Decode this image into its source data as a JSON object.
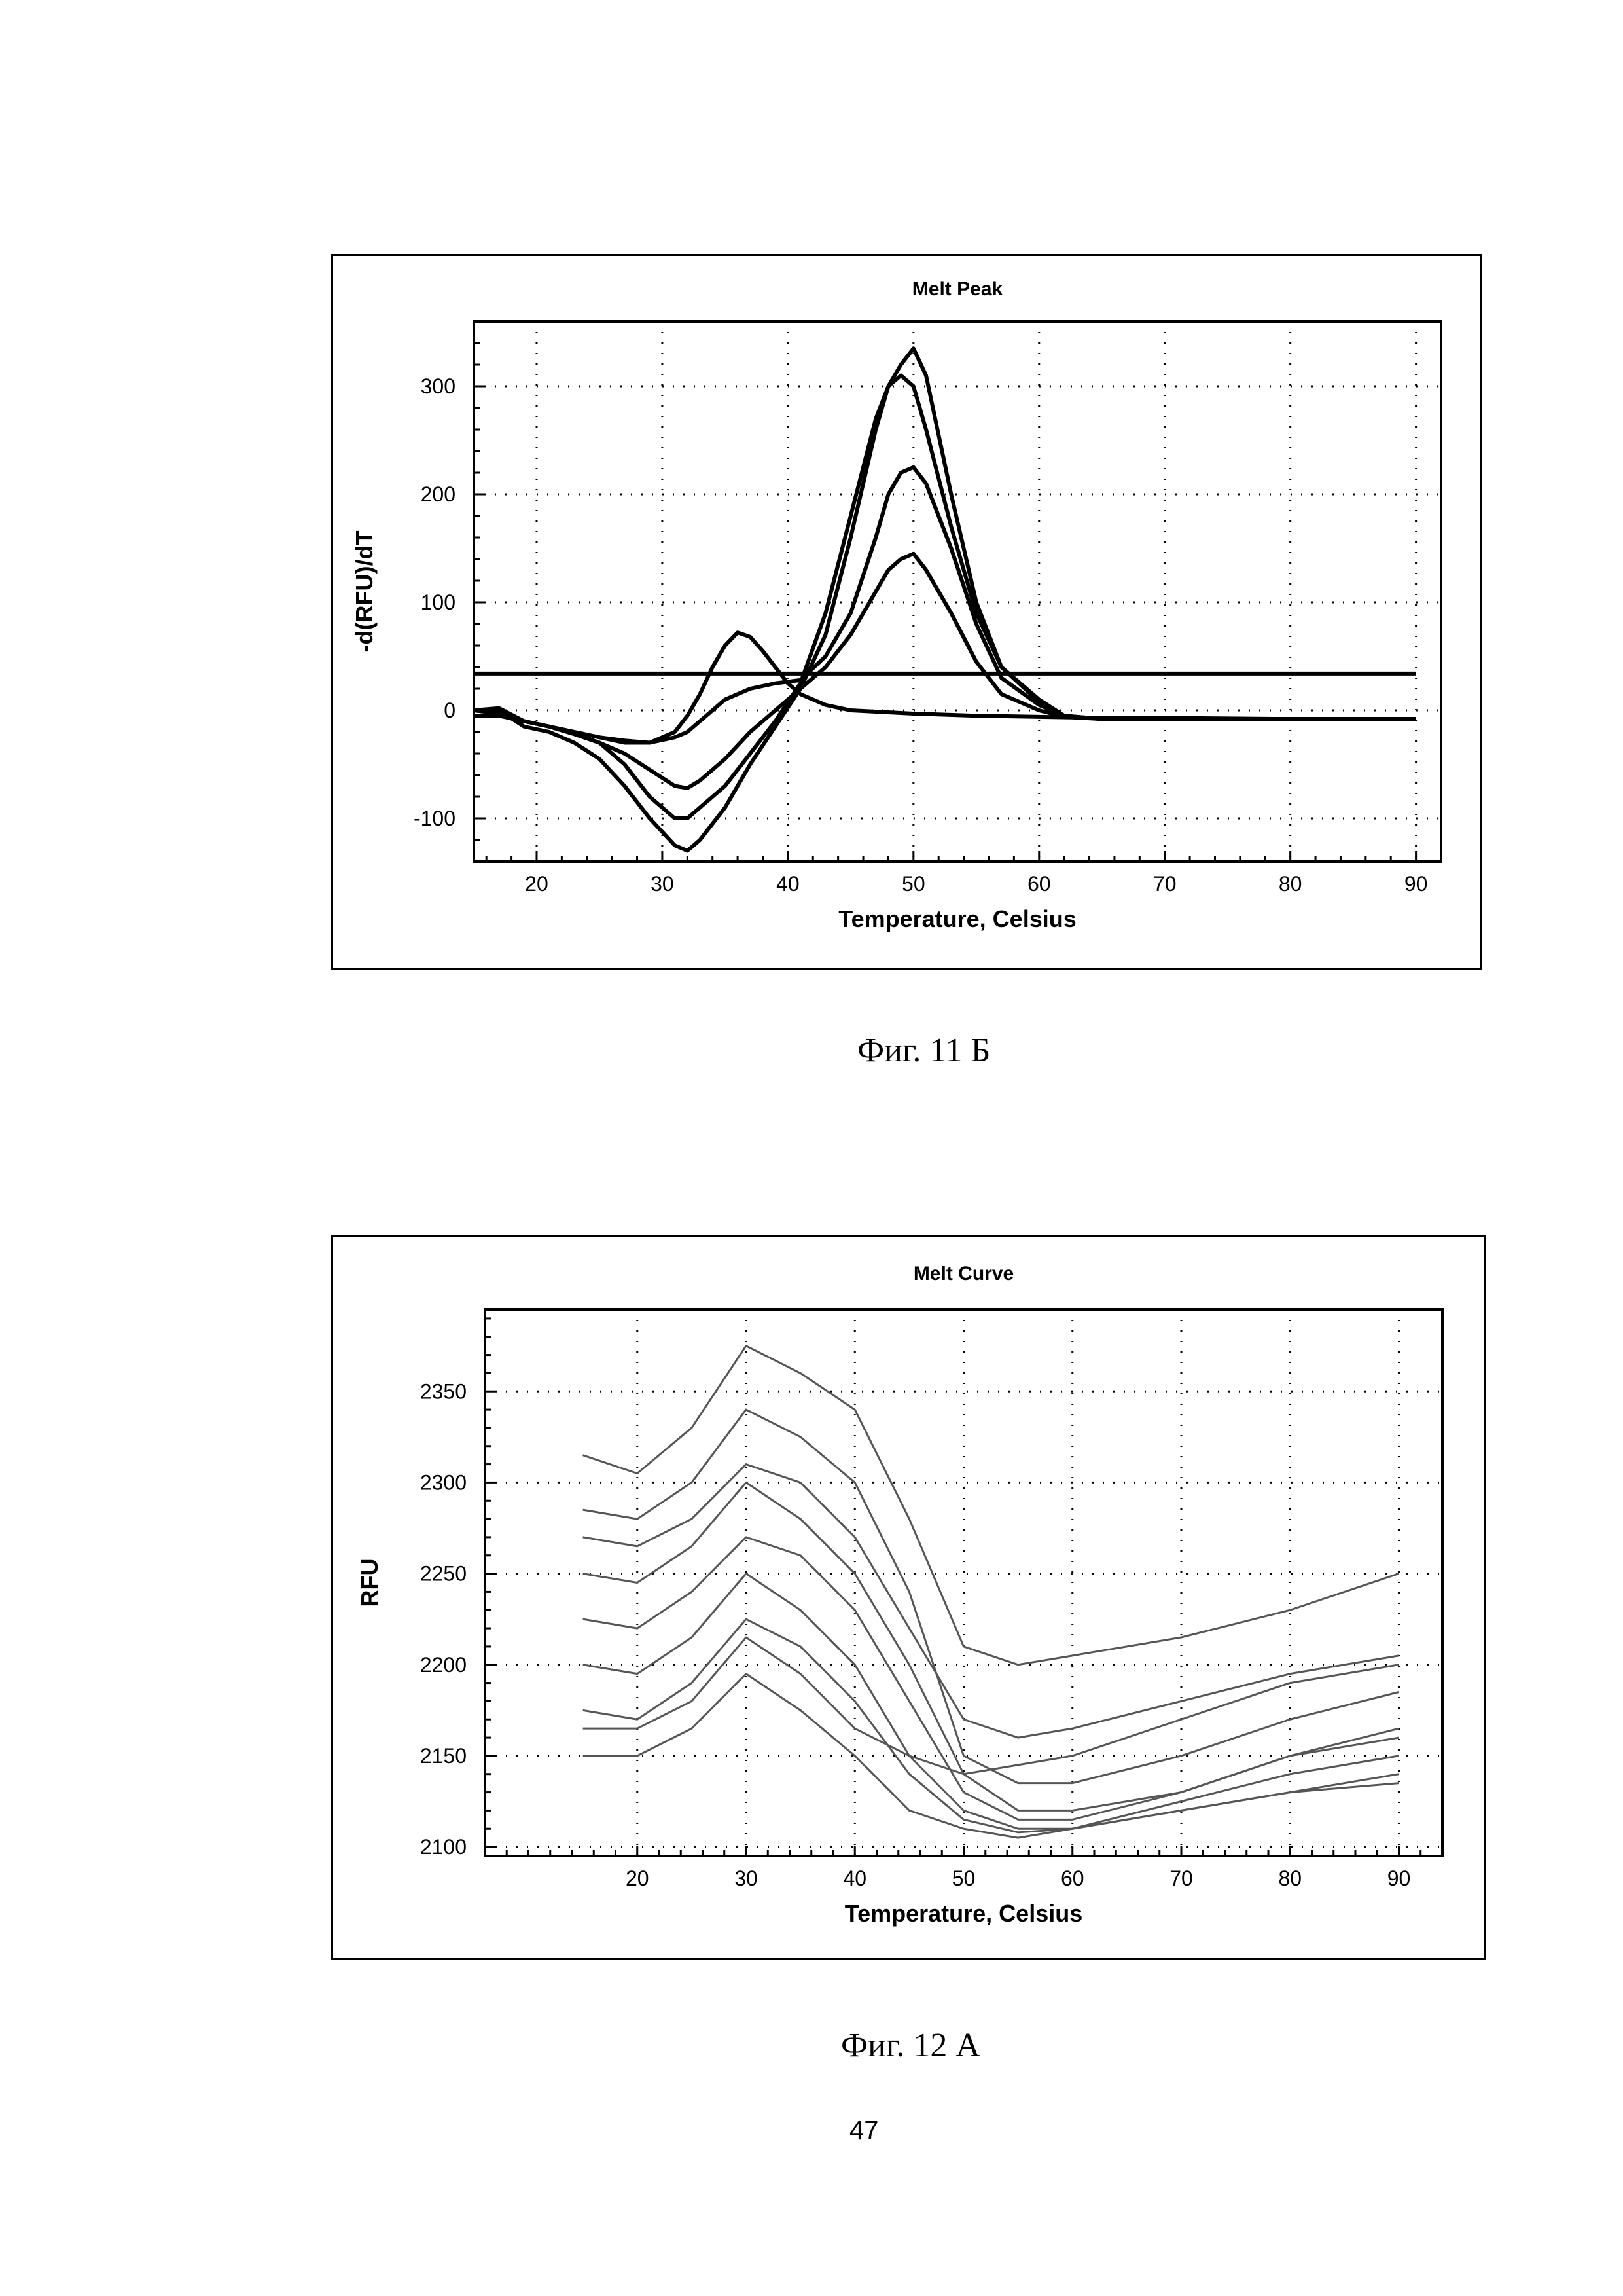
{
  "page": {
    "page_number": "47"
  },
  "figures": [
    {
      "caption": "Фиг. 11 Б"
    },
    {
      "caption": "Фиг. 12 А"
    }
  ],
  "chart_data": [
    {
      "type": "line",
      "title": "Melt Peak",
      "xlabel": "Temperature, Celsius",
      "ylabel": "-d(RFU)/dT",
      "xlim": [
        15,
        92
      ],
      "ylim": [
        -140,
        360
      ],
      "xticks": [
        20,
        30,
        40,
        50,
        60,
        70,
        80,
        90
      ],
      "yticks": [
        -100,
        0,
        100,
        200,
        300
      ],
      "grid": true,
      "line_color": "#000000",
      "series": [
        {
          "x": [
            15,
            17,
            19,
            21,
            23,
            25,
            27,
            29,
            31,
            32,
            33,
            35,
            37,
            39,
            41,
            43,
            45,
            47,
            48,
            49,
            50,
            51,
            53,
            55,
            57,
            60,
            62,
            65,
            70,
            80,
            90
          ],
          "values": [
            0,
            2,
            -10,
            -15,
            -22,
            -30,
            -50,
            -80,
            -100,
            -100,
            -90,
            -70,
            -40,
            -10,
            25,
            90,
            180,
            270,
            300,
            310,
            300,
            260,
            170,
            90,
            40,
            10,
            -5,
            -8,
            -8,
            -8,
            -8
          ]
        },
        {
          "x": [
            15,
            17,
            19,
            21,
            23,
            25,
            27,
            29,
            31,
            32,
            33,
            35,
            37,
            39,
            41,
            43,
            45,
            47,
            48,
            49,
            50,
            51,
            53,
            55,
            57,
            60,
            62,
            65,
            70,
            80,
            90
          ],
          "values": [
            0,
            0,
            -15,
            -20,
            -30,
            -45,
            -70,
            -100,
            -125,
            -130,
            -120,
            -90,
            -50,
            -15,
            20,
            70,
            160,
            260,
            300,
            320,
            335,
            310,
            200,
            100,
            40,
            8,
            -5,
            -8,
            -8,
            -8,
            -8
          ]
        },
        {
          "x": [
            15,
            17,
            19,
            21,
            23,
            25,
            27,
            29,
            31,
            32,
            33,
            35,
            37,
            39,
            41,
            43,
            45,
            47,
            48,
            49,
            50,
            51,
            53,
            55,
            57,
            60,
            62,
            65,
            70,
            80,
            90
          ],
          "values": [
            -5,
            -5,
            -10,
            -15,
            -22,
            -30,
            -40,
            -55,
            -70,
            -72,
            -65,
            -45,
            -20,
            0,
            20,
            40,
            70,
            110,
            130,
            140,
            145,
            130,
            90,
            45,
            15,
            0,
            -6,
            -8,
            -8,
            -8,
            -8
          ]
        },
        {
          "x": [
            15,
            17,
            19,
            21,
            23,
            25,
            27,
            29,
            31,
            32,
            33,
            35,
            37,
            39,
            41,
            43,
            45,
            47,
            48,
            49,
            50,
            51,
            53,
            55,
            57,
            60,
            62,
            65,
            70,
            80,
            90
          ],
          "values": [
            0,
            -3,
            -10,
            -15,
            -20,
            -25,
            -28,
            -30,
            -25,
            -20,
            -10,
            10,
            20,
            25,
            28,
            50,
            90,
            160,
            200,
            220,
            225,
            210,
            150,
            80,
            30,
            5,
            -5,
            -8,
            -8,
            -8,
            -8
          ]
        },
        {
          "x": [
            15,
            17,
            19,
            21,
            23,
            25,
            27,
            29,
            31,
            32,
            33,
            34,
            35,
            36,
            37,
            38,
            39,
            40,
            41,
            43,
            45,
            50,
            55,
            60,
            65,
            70,
            80,
            90
          ],
          "values": [
            0,
            -2,
            -10,
            -15,
            -20,
            -25,
            -30,
            -30,
            -20,
            -5,
            15,
            40,
            60,
            72,
            68,
            55,
            40,
            25,
            15,
            5,
            0,
            -3,
            -5,
            -6,
            -7,
            -7,
            -8,
            -8
          ]
        },
        {
          "x": [
            15,
            90
          ],
          "values": [
            34,
            34
          ]
        }
      ]
    },
    {
      "type": "line",
      "title": "Melt Curve",
      "xlabel": "Temperature, Celsius",
      "ylabel": "RFU",
      "xlim": [
        6,
        94
      ],
      "ylim": [
        2095,
        2395
      ],
      "xticks": [
        20,
        30,
        40,
        50,
        60,
        70,
        80,
        90
      ],
      "yticks": [
        2100,
        2150,
        2200,
        2250,
        2300,
        2350
      ],
      "grid": true,
      "line_color": "#555555",
      "series": [
        {
          "x": [
            15,
            20,
            25,
            30,
            35,
            40,
            45,
            50,
            55,
            60,
            70,
            80,
            90
          ],
          "values": [
            2315,
            2305,
            2330,
            2375,
            2360,
            2340,
            2280,
            2210,
            2200,
            2205,
            2215,
            2230,
            2250
          ]
        },
        {
          "x": [
            15,
            20,
            25,
            30,
            35,
            40,
            45,
            50,
            55,
            60,
            70,
            80,
            90
          ],
          "values": [
            2285,
            2280,
            2300,
            2340,
            2325,
            2300,
            2240,
            2150,
            2135,
            2135,
            2150,
            2170,
            2185
          ]
        },
        {
          "x": [
            15,
            20,
            25,
            30,
            35,
            40,
            45,
            50,
            55,
            60,
            70,
            80,
            90
          ],
          "values": [
            2250,
            2245,
            2265,
            2300,
            2280,
            2250,
            2200,
            2140,
            2120,
            2120,
            2130,
            2150,
            2165
          ]
        },
        {
          "x": [
            15,
            20,
            25,
            30,
            35,
            40,
            45,
            50,
            55,
            60,
            70,
            80,
            90
          ],
          "values": [
            2225,
            2220,
            2240,
            2270,
            2260,
            2230,
            2180,
            2130,
            2115,
            2115,
            2130,
            2150,
            2160
          ]
        },
        {
          "x": [
            15,
            20,
            25,
            30,
            35,
            40,
            45,
            50,
            55,
            60,
            70,
            80,
            90
          ],
          "values": [
            2200,
            2195,
            2215,
            2250,
            2230,
            2200,
            2150,
            2120,
            2110,
            2110,
            2125,
            2140,
            2150
          ]
        },
        {
          "x": [
            15,
            20,
            25,
            30,
            35,
            40,
            45,
            50,
            55,
            60,
            70,
            80,
            90
          ],
          "values": [
            2175,
            2170,
            2190,
            2225,
            2210,
            2180,
            2140,
            2115,
            2108,
            2110,
            2120,
            2130,
            2140
          ]
        },
        {
          "x": [
            15,
            20,
            25,
            30,
            35,
            40,
            45,
            50,
            55,
            60,
            70,
            80,
            90
          ],
          "values": [
            2150,
            2150,
            2165,
            2195,
            2175,
            2150,
            2120,
            2110,
            2105,
            2110,
            2120,
            2130,
            2135
          ]
        },
        {
          "x": [
            15,
            20,
            25,
            30,
            35,
            40,
            45,
            50,
            55,
            60,
            70,
            80,
            90
          ],
          "values": [
            2165,
            2165,
            2180,
            2215,
            2195,
            2165,
            2150,
            2140,
            2145,
            2150,
            2170,
            2190,
            2200
          ]
        },
        {
          "x": [
            15,
            20,
            25,
            30,
            35,
            40,
            45,
            50,
            55,
            60,
            70,
            80,
            90
          ],
          "values": [
            2270,
            2265,
            2280,
            2310,
            2300,
            2270,
            2220,
            2170,
            2160,
            2165,
            2180,
            2195,
            2205
          ]
        }
      ]
    }
  ]
}
